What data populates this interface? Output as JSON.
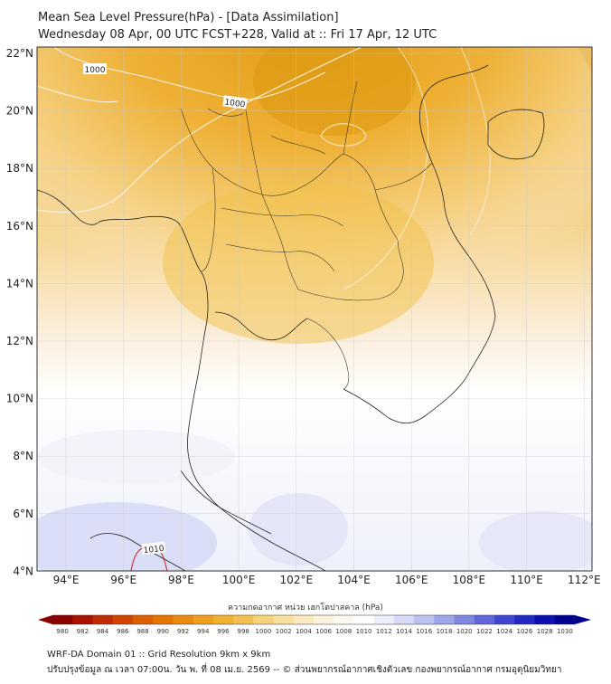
{
  "title_line1": "Mean Sea Level Pressure(hPa) - [Data Assimilation]",
  "title_line2": "Wednesday 08 Apr, 00 UTC FCST+228, Valid at :: Fri 17 Apr, 12 UTC",
  "lat_labels": [
    "22°N",
    "20°N",
    "18°N",
    "16°N",
    "14°N",
    "12°N",
    "10°N",
    "8°N",
    "6°N",
    "4°N"
  ],
  "lon_labels": [
    "94°E",
    "96°E",
    "98°E",
    "100°E",
    "102°E",
    "104°E",
    "106°E",
    "108°E",
    "110°E",
    "112°E"
  ],
  "contour_labels": [
    "1000",
    "1000",
    "1010"
  ],
  "colorbar": {
    "title": "ความกดอากาศ หน่วย เฮกโตปาสคาล (hPa)",
    "ticks": [
      "980",
      "982",
      "984",
      "986",
      "988",
      "990",
      "992",
      "994",
      "996",
      "998",
      "1000",
      "1002",
      "1004",
      "1006",
      "1008",
      "1010",
      "1012",
      "1014",
      "1016",
      "1018",
      "1020",
      "1022",
      "1024",
      "1026",
      "1028",
      "1030"
    ],
    "colors": [
      "#8b0000",
      "#a81000",
      "#c02a00",
      "#d04400",
      "#dc5e00",
      "#e47400",
      "#e98a10",
      "#eda020",
      "#f0b030",
      "#f2c050",
      "#f6d27a",
      "#f8dfa0",
      "#fae9c0",
      "#fcf2dc",
      "#fdf8ef",
      "#ffffff",
      "#eceefb",
      "#d6daf6",
      "#bcc2f0",
      "#9ea6ea",
      "#7e86e2",
      "#5e66da",
      "#3e46d2",
      "#2228c4",
      "#0c10b0",
      "#000090"
    ]
  },
  "footer_line1": "WRF-DA Domain 01 :: Grid Resolution 9km x 9km",
  "footer_line2": "ปรับปรุงข้อมูล ณ เวลา 07:00น. วัน พ. ที่ 08 เม.ย. 2569 -- © ส่วนพยากรณ์อากาศเชิงตัวเลข กองพยากรณ์อากาศ กรมอุตุนิยมวิทยา"
}
